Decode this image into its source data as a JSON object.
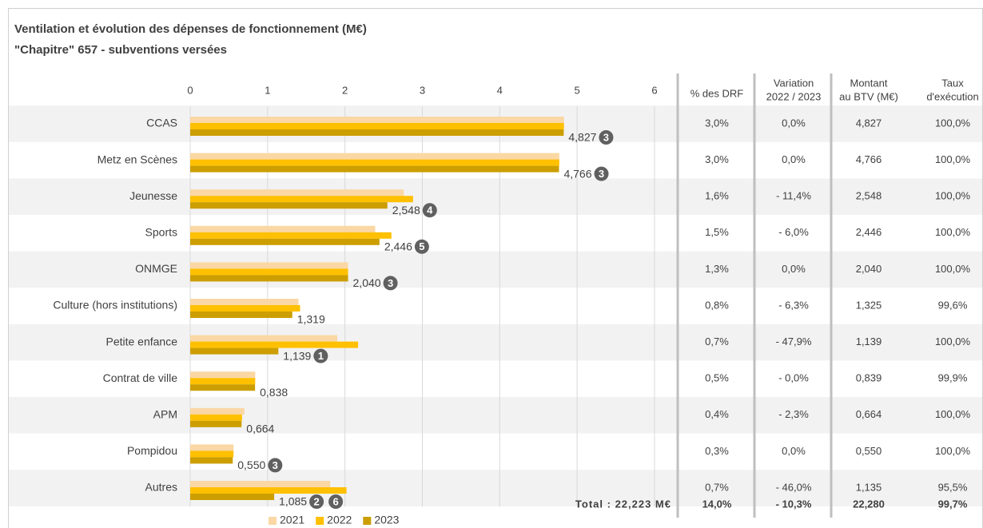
{
  "chart_data": {
    "type": "bar",
    "orientation": "horizontal",
    "title": "Ventilation et évolution des dépenses de fonctionnement (M€)",
    "subtitle": "\"Chapitre\" 657 - subventions versées",
    "categories": [
      "CCAS",
      "Metz en Scènes",
      "Jeunesse",
      "Sports",
      "ONMGE",
      "Culture (hors institutions)",
      "Petite enfance",
      "Contrat de ville",
      "APM",
      "Pompidou",
      "Autres"
    ],
    "series": [
      {
        "name": "2021",
        "color": "#fad7a4",
        "values": [
          4.83,
          4.77,
          2.76,
          2.39,
          2.04,
          1.4,
          1.9,
          0.84,
          0.7,
          0.56,
          1.81
        ]
      },
      {
        "name": "2022",
        "color": "#ffc000",
        "values": [
          4.83,
          4.77,
          2.88,
          2.6,
          2.04,
          1.42,
          2.17,
          0.84,
          0.67,
          0.56,
          2.02
        ]
      },
      {
        "name": "2023",
        "color": "#cc9e00",
        "values": [
          4.827,
          4.766,
          2.548,
          2.446,
          2.04,
          1.319,
          1.139,
          0.838,
          0.664,
          0.55,
          1.085
        ],
        "value_labels": [
          "4,827",
          "4,766",
          "2,548",
          "2,446",
          "2,040",
          "1,319",
          "1,139",
          "0,838",
          "0,664",
          "0,550",
          "1,085"
        ]
      }
    ],
    "notes": [
      [
        "3"
      ],
      [
        "3"
      ],
      [
        "4"
      ],
      [
        "5"
      ],
      [
        "3"
      ],
      [],
      [
        "1"
      ],
      [],
      [],
      [
        "3"
      ],
      [
        "2",
        "6"
      ]
    ],
    "xlim": [
      0,
      6.3
    ],
    "xticks": [
      0,
      1,
      2,
      3,
      4,
      5,
      6
    ],
    "grid": true,
    "legend": "bottom"
  },
  "table": {
    "headers": [
      [
        "% des DRF"
      ],
      [
        "Variation",
        "2022 / 2023"
      ],
      [
        "Montant",
        "au BTV (M€)"
      ],
      [
        "Taux",
        "d'exécution"
      ]
    ],
    "rows": [
      [
        "3,0%",
        "0,0%",
        "4,827",
        "100,0%"
      ],
      [
        "3,0%",
        "0,0%",
        "4,766",
        "100,0%"
      ],
      [
        "1,6%",
        "- 11,4%",
        "2,548",
        "100,0%"
      ],
      [
        "1,5%",
        "- 6,0%",
        "2,446",
        "100,0%"
      ],
      [
        "1,3%",
        "0,0%",
        "2,040",
        "100,0%"
      ],
      [
        "0,8%",
        "- 6,3%",
        "1,325",
        "99,6%"
      ],
      [
        "0,7%",
        "- 47,9%",
        "1,139",
        "100,0%"
      ],
      [
        "0,5%",
        "- 0,0%",
        "0,839",
        "99,9%"
      ],
      [
        "0,4%",
        "- 2,3%",
        "0,664",
        "100,0%"
      ],
      [
        "0,3%",
        "0,0%",
        "0,550",
        "100,0%"
      ],
      [
        "0,7%",
        "- 46,0%",
        "1,135",
        "95,5%"
      ]
    ],
    "total_label": "Total :  22,223 M€",
    "total": [
      "14,0%",
      "- 10,3%",
      "22,280",
      "99,7%"
    ]
  }
}
